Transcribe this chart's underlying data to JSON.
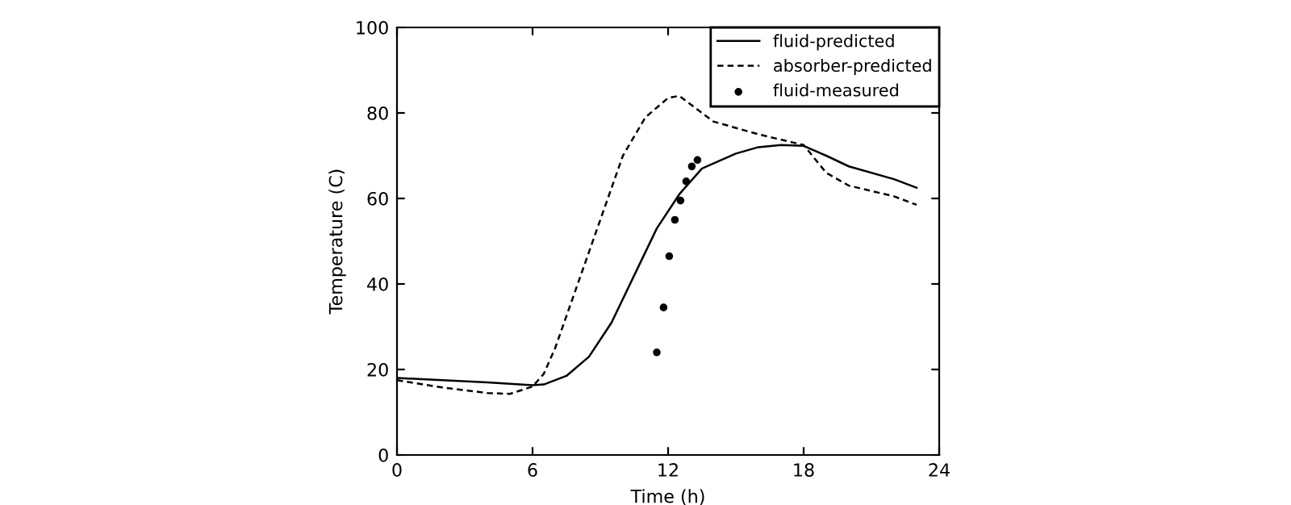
{
  "chart_data": {
    "type": "line",
    "xlabel": "Time (h)",
    "ylabel": "Temperature (C)",
    "xlim": [
      0,
      24
    ],
    "ylim": [
      0,
      100
    ],
    "xticks": [
      0,
      6,
      12,
      18,
      24
    ],
    "yticks": [
      0,
      20,
      40,
      60,
      80,
      100
    ],
    "grid": false,
    "legend": "top right",
    "series": [
      {
        "name": "fluid-predicted",
        "color": "#000000",
        "line_style": "solid",
        "marker": "none",
        "x": [
          0,
          2,
          4,
          6,
          6.5,
          7.5,
          8.5,
          9.5,
          10.5,
          11.5,
          12.5,
          13.5,
          15,
          16,
          17,
          18,
          19,
          20,
          22,
          23
        ],
        "values": [
          18,
          17.5,
          17,
          16.3,
          16.5,
          18.5,
          23,
          31,
          42,
          53,
          61,
          67,
          70.5,
          72,
          72.5,
          72.3,
          70,
          67.5,
          64.5,
          62.5
        ]
      },
      {
        "name": "absorber-predicted",
        "color": "#000000",
        "line_style": "dashed",
        "marker": "none",
        "x": [
          0,
          2,
          4,
          5,
          6,
          6.5,
          7,
          8,
          9,
          10,
          11,
          12,
          12.5,
          13,
          14,
          16,
          18,
          19,
          20,
          22,
          23
        ],
        "values": [
          17.5,
          15.8,
          14.5,
          14.3,
          16,
          19,
          25,
          40,
          55,
          70,
          79,
          83.5,
          84,
          82,
          78,
          75,
          72.5,
          66,
          63,
          60.5,
          58.5
        ]
      },
      {
        "name": "fluid-measured",
        "type": "scatter",
        "color": "#000000",
        "marker": "circle",
        "x": [
          11.5,
          11.8,
          12.05,
          12.3,
          12.55,
          12.8,
          13.05,
          13.3
        ],
        "values": [
          24,
          34.5,
          46.5,
          55,
          59.5,
          64,
          67.5,
          69
        ]
      }
    ]
  }
}
